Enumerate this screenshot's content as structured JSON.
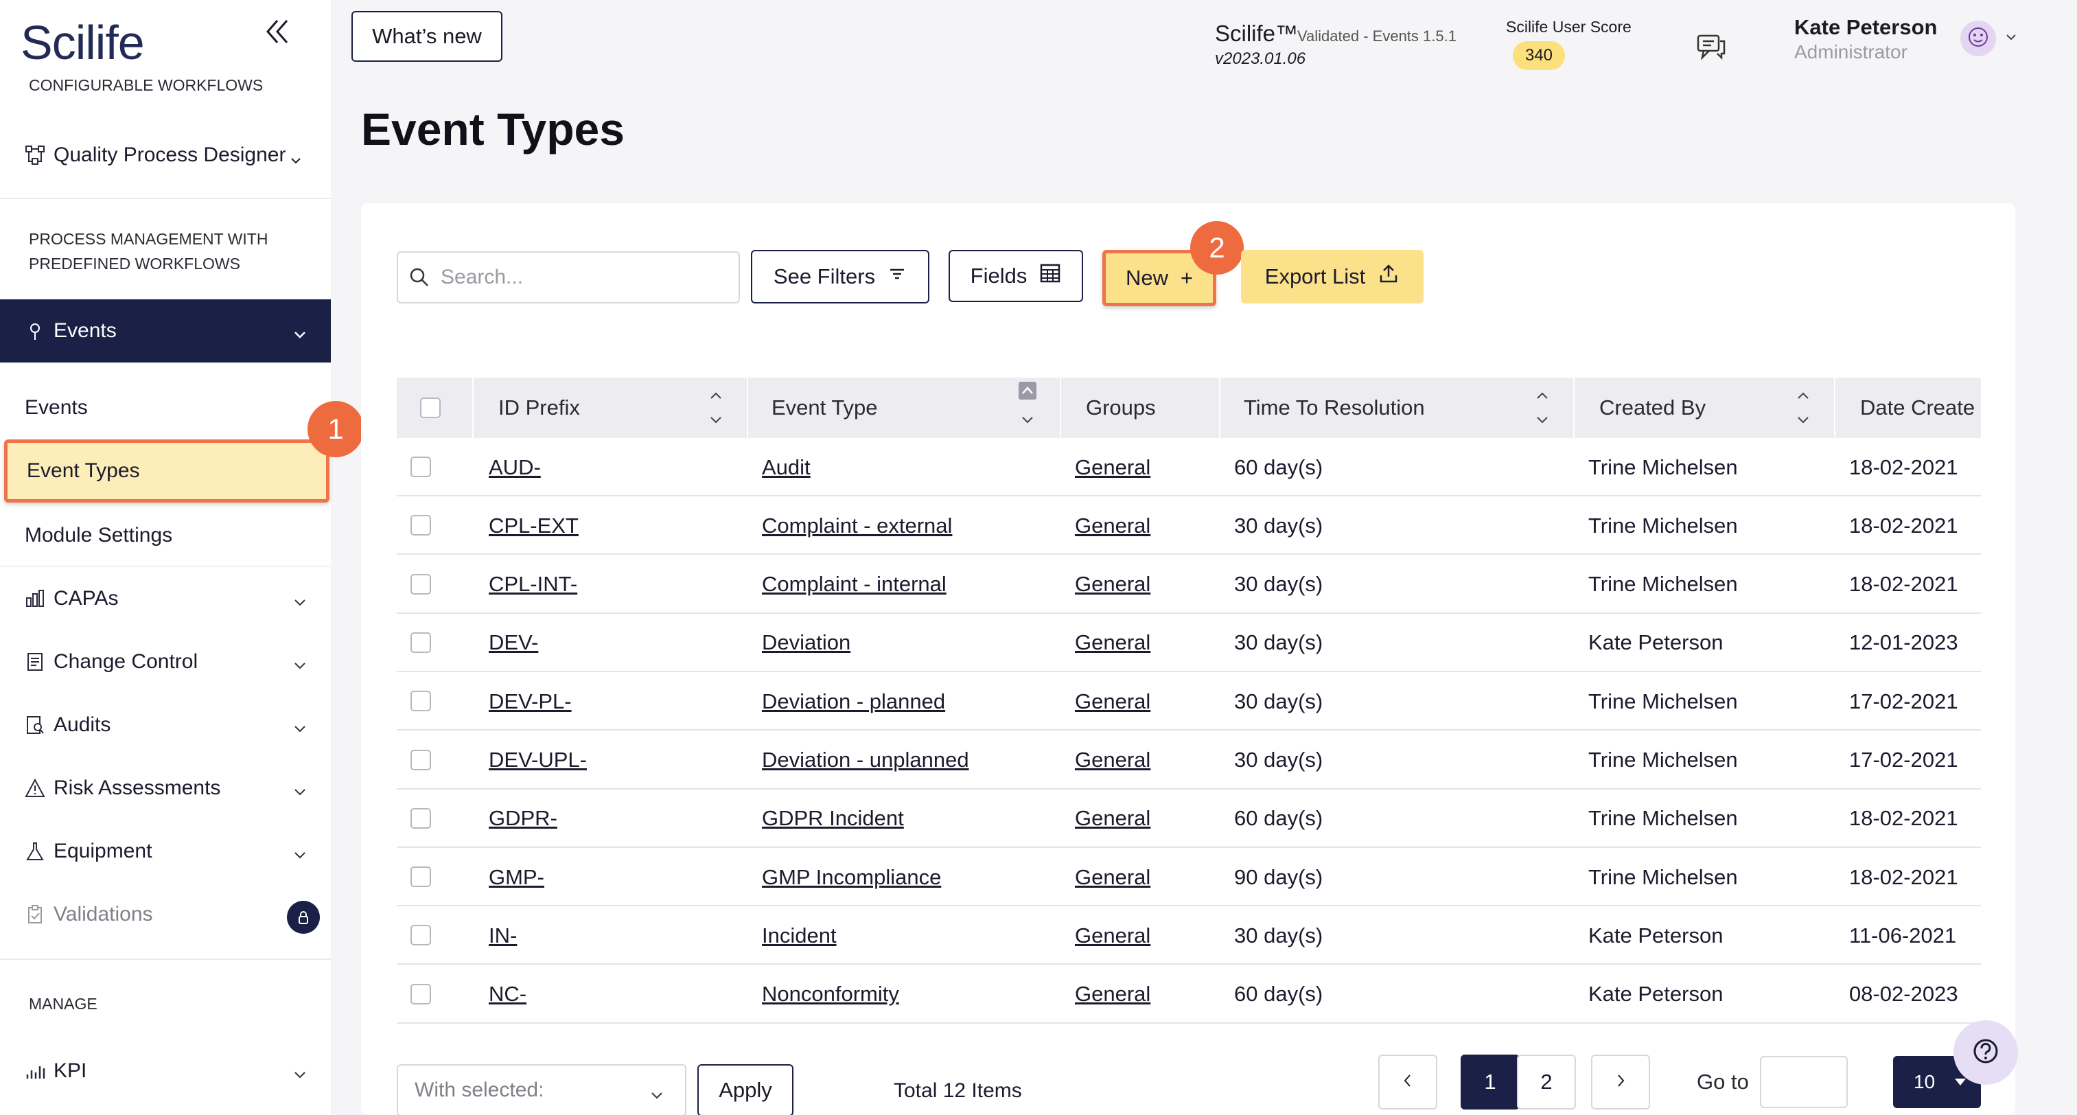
{
  "brand": {
    "logo": "Scilife"
  },
  "sidebar": {
    "section_configurable": "CONFIGURABLE WORKFLOWS",
    "quality_process_designer": "Quality Process Designer",
    "section_process_line1": "PROCESS MANAGEMENT WITH",
    "section_process_line2": "PREDEFINED WORKFLOWS",
    "events_group": "Events",
    "sub_events": "Events",
    "sub_event_types": "Event Types",
    "sub_module_settings": "Module Settings",
    "capas": "CAPAs",
    "change_control": "Change Control",
    "audits": "Audits",
    "risk_assessments": "Risk Assessments",
    "equipment": "Equipment",
    "validations": "Validations",
    "section_manage": "MANAGE",
    "kpi": "KPI"
  },
  "annotations": {
    "step1": "1",
    "step2": "2"
  },
  "header": {
    "whats_new": "What’s new",
    "app_name": "Scilife™",
    "app_subtitle": "Validated - Events 1.5.1",
    "app_version": "v2023.01.06",
    "score_label": "Scilife User Score",
    "score_value": "340",
    "user_name": "Kate Peterson",
    "user_role": "Administrator"
  },
  "page": {
    "title": "Event Types"
  },
  "toolbar": {
    "search_placeholder": "Search...",
    "see_filters": "See Filters",
    "fields": "Fields",
    "new": "New",
    "new_plus": "+",
    "export_list": "Export List"
  },
  "table": {
    "headers": [
      "ID Prefix",
      "Event Type",
      "Groups",
      "Time To Resolution",
      "Created By",
      "Date Create"
    ],
    "rows": [
      {
        "id": "AUD-",
        "type": "Audit",
        "group": "General",
        "ttr": "60 day(s)",
        "by": "Trine Michelsen",
        "date": "18-02-2021"
      },
      {
        "id": "CPL-EXT",
        "type": "Complaint - external",
        "group": "General",
        "ttr": "30 day(s)",
        "by": "Trine Michelsen",
        "date": "18-02-2021"
      },
      {
        "id": "CPL-INT-",
        "type": "Complaint - internal",
        "group": "General",
        "ttr": "30 day(s)",
        "by": "Trine Michelsen",
        "date": "18-02-2021"
      },
      {
        "id": "DEV-",
        "type": "Deviation",
        "group": "General",
        "ttr": "30 day(s)",
        "by": "Kate Peterson",
        "date": "12-01-2023"
      },
      {
        "id": "DEV-PL-",
        "type": "Deviation - planned",
        "group": "General",
        "ttr": "30 day(s)",
        "by": "Trine Michelsen",
        "date": "17-02-2021"
      },
      {
        "id": "DEV-UPL-",
        "type": "Deviation - unplanned",
        "group": "General",
        "ttr": "30 day(s)",
        "by": "Trine Michelsen",
        "date": "17-02-2021"
      },
      {
        "id": "GDPR-",
        "type": "GDPR Incident",
        "group": "General",
        "ttr": "60 day(s)",
        "by": "Trine Michelsen",
        "date": "18-02-2021"
      },
      {
        "id": "GMP-",
        "type": "GMP Incompliance",
        "group": "General",
        "ttr": "90 day(s)",
        "by": "Trine Michelsen",
        "date": "18-02-2021"
      },
      {
        "id": "IN-",
        "type": "Incident",
        "group": "General",
        "ttr": "30 day(s)",
        "by": "Kate Peterson",
        "date": "11-06-2021"
      },
      {
        "id": "NC-",
        "type": "Nonconformity",
        "group": "General",
        "ttr": "60 day(s)",
        "by": "Kate Peterson",
        "date": "08-02-2023"
      }
    ]
  },
  "footer": {
    "with_selected": "With selected:",
    "apply": "Apply",
    "total": "Total 12 Items",
    "pages": [
      "1",
      "2"
    ],
    "current_page": "1",
    "go_to": "Go to",
    "page_size": "10"
  },
  "colors": {
    "navy": "#1b2146",
    "highlight": "#f0744a",
    "yellow": "#fbe28a",
    "active_bg": "#fdedb8"
  },
  "icons": [
    "collapse-sidebar-icon",
    "workflow-icon",
    "pin-icon",
    "capa-icon",
    "change-control-icon",
    "audit-icon",
    "warning-icon",
    "equipment-icon",
    "validation-icon",
    "lock-icon",
    "kpi-icon",
    "chat-icon",
    "avatar-icon",
    "search-icon",
    "filter-icon",
    "table-icon",
    "upload-icon",
    "help-icon"
  ]
}
